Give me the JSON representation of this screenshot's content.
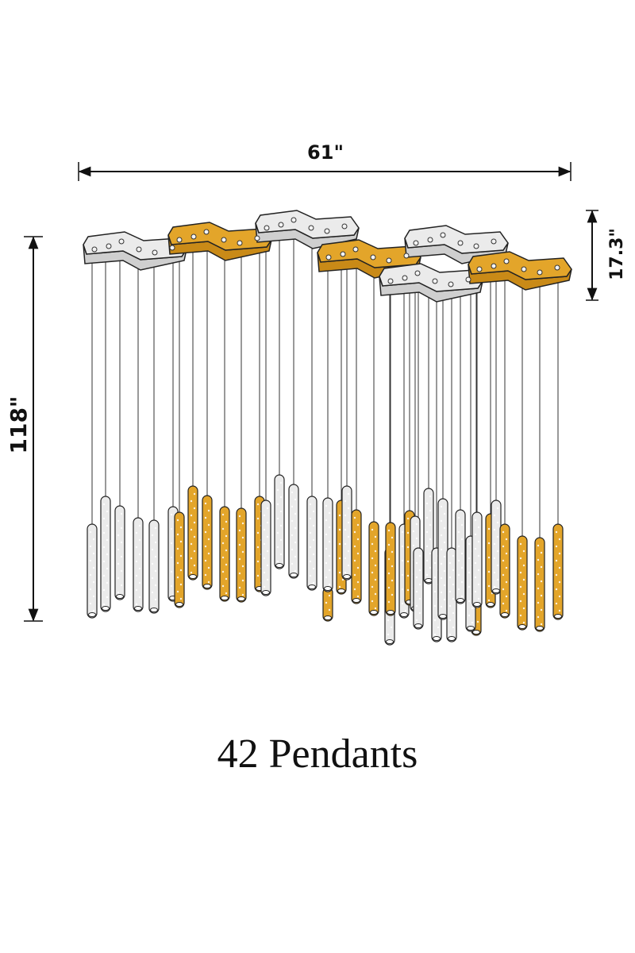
{
  "dimensions": {
    "width_label": "61\"",
    "height_label": "118\"",
    "canopy_height_label": "17.3\""
  },
  "caption": "42 Pendants",
  "colors": {
    "gold": "#e3a52a",
    "silver": "#ebebeb",
    "outline": "#222222"
  }
}
